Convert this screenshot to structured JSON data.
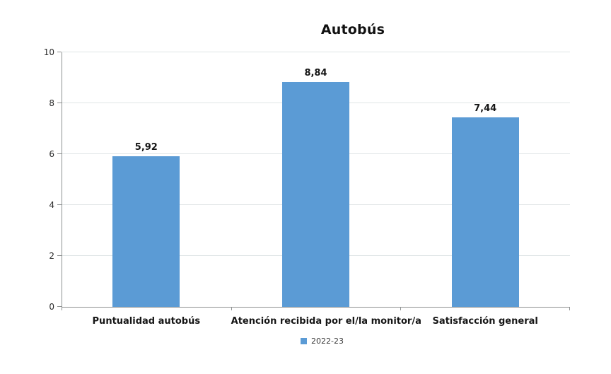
{
  "title": "Autobús",
  "legend": {
    "items": [
      {
        "label": "2022-23",
        "color": "#5B9BD5"
      }
    ]
  },
  "colors": {
    "bar": "#5B9BD5",
    "gridline": "#E0E5E6",
    "axis": "#8E9191",
    "title_text": "#111111",
    "label_text": "#161616"
  },
  "chart_data": {
    "type": "bar",
    "title": "Autobús",
    "categories": [
      "Puntualidad autobús",
      "Atención recibida por el/la monitor/a",
      "Satisfacción general"
    ],
    "series": [
      {
        "name": "2022-23",
        "values": [
          5.92,
          8.84,
          7.44
        ],
        "color": "#5B9BD5"
      }
    ],
    "value_labels": [
      "5,92",
      "8,84",
      "7,44"
    ],
    "xlabel": "",
    "ylabel": "",
    "ylim": [
      0,
      10
    ],
    "yticks": [
      0,
      2,
      4,
      6,
      8,
      10
    ],
    "grid": true,
    "legend_position": "bottom"
  }
}
